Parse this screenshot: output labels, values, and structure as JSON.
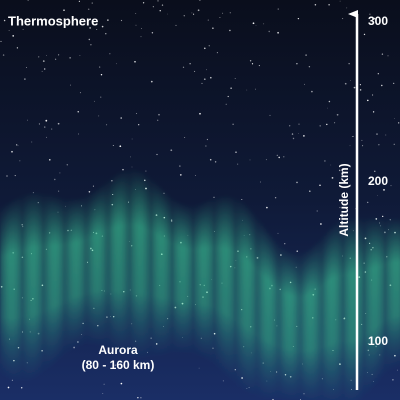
{
  "title": "Thermosphere",
  "axis": {
    "label": "Altitude (km)",
    "ticks": [
      100,
      200,
      300
    ]
  },
  "aurora": {
    "name": "Aurora",
    "range": "(80 - 160 km)"
  }
}
